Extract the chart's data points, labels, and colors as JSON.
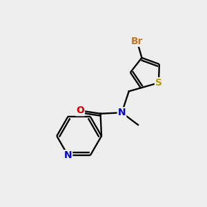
{
  "background_color": "#eeeeee",
  "bond_color": "#000000",
  "atom_colors": {
    "Br": "#c87820",
    "S": "#b8a000",
    "N": "#0000cc",
    "O": "#dd0000",
    "C": "#000000"
  },
  "figsize": [
    3.0,
    3.0
  ],
  "dpi": 100
}
